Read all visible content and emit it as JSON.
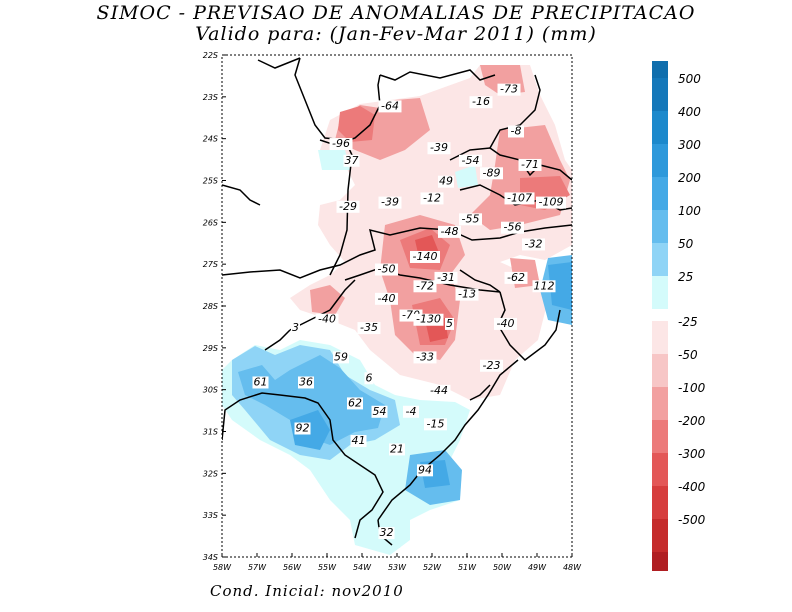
{
  "title_line1": "SIMOC - PREVISAO DE ANOMALIAS DE PRECIPITACAO",
  "title_line2": "Valido para: (Jan-Fev-Mar 2011) (mm)",
  "footer": "Cond. Inicial: nov2010",
  "map": {
    "lon_range": [
      -58,
      -48
    ],
    "lat_range": [
      -34,
      -22
    ],
    "lat_ticks": [
      "22S",
      "23S",
      "24S",
      "25S",
      "26S",
      "27S",
      "28S",
      "29S",
      "30S",
      "31S",
      "32S",
      "33S",
      "34S"
    ],
    "lon_ticks": [
      "58W",
      "57W",
      "56W",
      "55W",
      "54W",
      "53W",
      "52W",
      "51W",
      "50W",
      "49W",
      "48W"
    ],
    "values": [
      {
        "text": "-73",
        "lon": -49.8,
        "lat": -22.9
      },
      {
        "text": "-16",
        "lon": -50.6,
        "lat": -23.2
      },
      {
        "text": "-64",
        "lon": -53.2,
        "lat": -23.3
      },
      {
        "text": "-8",
        "lon": -49.6,
        "lat": -23.9
      },
      {
        "text": "-96",
        "lon": -54.6,
        "lat": -24.2
      },
      {
        "text": "-39",
        "lon": -51.8,
        "lat": -24.3
      },
      {
        "text": "-54",
        "lon": -50.9,
        "lat": -24.6
      },
      {
        "text": "-71",
        "lon": -49.2,
        "lat": -24.7
      },
      {
        "text": "37",
        "lon": -54.3,
        "lat": -24.6
      },
      {
        "text": "-89",
        "lon": -50.3,
        "lat": -24.9
      },
      {
        "text": "49",
        "lon": -51.6,
        "lat": -25.1
      },
      {
        "text": "-107",
        "lon": -49.5,
        "lat": -25.5
      },
      {
        "text": "-109",
        "lon": -48.6,
        "lat": -25.6
      },
      {
        "text": "-12",
        "lon": -52.0,
        "lat": -25.5
      },
      {
        "text": "-39",
        "lon": -53.2,
        "lat": -25.6
      },
      {
        "text": "-29",
        "lon": -54.4,
        "lat": -25.7
      },
      {
        "text": "-55",
        "lon": -50.9,
        "lat": -26.0
      },
      {
        "text": "-56",
        "lon": -49.7,
        "lat": -26.2
      },
      {
        "text": "-48",
        "lon": -51.5,
        "lat": -26.3
      },
      {
        "text": "-32",
        "lon": -49.1,
        "lat": -26.6
      },
      {
        "text": "-140",
        "lon": -52.2,
        "lat": -26.9
      },
      {
        "text": "-50",
        "lon": -53.3,
        "lat": -27.2
      },
      {
        "text": "-31",
        "lon": -51.6,
        "lat": -27.4
      },
      {
        "text": "-72",
        "lon": -52.2,
        "lat": -27.6
      },
      {
        "text": "-62",
        "lon": -49.6,
        "lat": -27.4
      },
      {
        "text": "112",
        "lon": -48.8,
        "lat": -27.6
      },
      {
        "text": "-13",
        "lon": -51.0,
        "lat": -27.8
      },
      {
        "text": "-40",
        "lon": -53.3,
        "lat": -27.9
      },
      {
        "text": "-40",
        "lon": -55.0,
        "lat": -28.4
      },
      {
        "text": "-70",
        "lon": -52.6,
        "lat": -28.3
      },
      {
        "text": "-130",
        "lon": -52.1,
        "lat": -28.4
      },
      {
        "text": "5",
        "lon": -51.5,
        "lat": -28.5
      },
      {
        "text": "-40",
        "lon": -49.9,
        "lat": -28.5
      },
      {
        "text": "-35",
        "lon": -53.8,
        "lat": -28.6
      },
      {
        "text": "3",
        "lon": -55.9,
        "lat": -28.6
      },
      {
        "text": "59",
        "lon": -54.6,
        "lat": -29.3
      },
      {
        "text": "-33",
        "lon": -52.2,
        "lat": -29.3
      },
      {
        "text": "-23",
        "lon": -50.3,
        "lat": -29.5
      },
      {
        "text": "6",
        "lon": -53.8,
        "lat": -29.8
      },
      {
        "text": "36",
        "lon": -55.6,
        "lat": -29.9
      },
      {
        "text": "61",
        "lon": -56.9,
        "lat": -29.9
      },
      {
        "text": "-44",
        "lon": -51.8,
        "lat": -30.1
      },
      {
        "text": "62",
        "lon": -54.2,
        "lat": -30.4
      },
      {
        "text": "54",
        "lon": -53.5,
        "lat": -30.6
      },
      {
        "text": "-4",
        "lon": -52.6,
        "lat": -30.6
      },
      {
        "text": "-15",
        "lon": -51.9,
        "lat": -30.9
      },
      {
        "text": "92",
        "lon": -55.7,
        "lat": -31.0
      },
      {
        "text": "41",
        "lon": -54.1,
        "lat": -31.3
      },
      {
        "text": "21",
        "lon": -53.0,
        "lat": -31.5
      },
      {
        "text": "94",
        "lon": -52.2,
        "lat": -32.0
      },
      {
        "text": "32",
        "lon": -53.3,
        "lat": -33.5
      }
    ]
  },
  "colorbar": {
    "positive": [
      {
        "label": "500",
        "color": "#1478ba"
      },
      {
        "label": "400",
        "color": "#1c89cc"
      },
      {
        "label": "300",
        "color": "#2e99db"
      },
      {
        "label": "200",
        "color": "#44a9e6"
      },
      {
        "label": "100",
        "color": "#65bdee"
      },
      {
        "label": "50",
        "color": "#8fd4f6"
      },
      {
        "label": "25",
        "color": "#d4fbfb"
      }
    ],
    "positive_top_color": "#0f6ead",
    "negative": [
      {
        "label": "-25",
        "color": "#fce6e6"
      },
      {
        "label": "-50",
        "color": "#f7c6c6"
      },
      {
        "label": "-100",
        "color": "#f2a0a0"
      },
      {
        "label": "-200",
        "color": "#ec7a7a"
      },
      {
        "label": "-300",
        "color": "#e35757"
      },
      {
        "label": "-400",
        "color": "#d63d3d"
      },
      {
        "label": "-500",
        "color": "#c52b2b"
      }
    ],
    "negative_bottom_color": "#b01e22"
  }
}
